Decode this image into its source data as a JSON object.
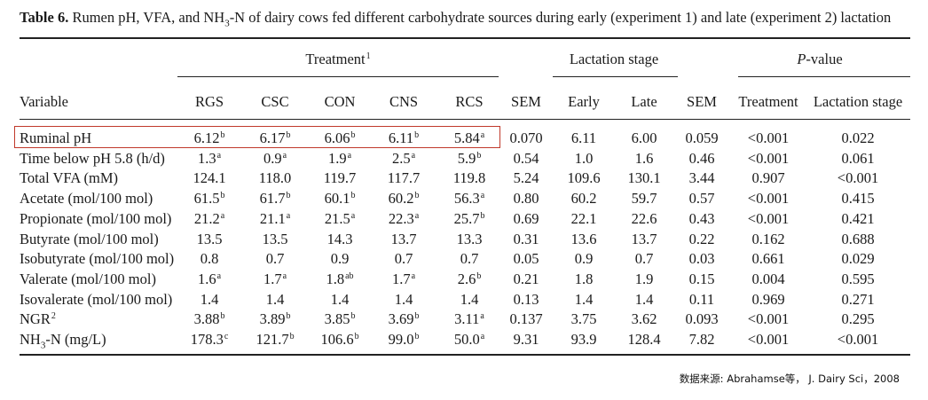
{
  "table": {
    "caption_label": "Table 6.",
    "caption_pre": " Rumen pH, VFA, and NH",
    "caption_sub": "3",
    "caption_post": "-N of dairy cows fed different carbohydrate sources during early (experiment 1) and late (experiment 2) lactation",
    "groups": {
      "treatment": "Treatment",
      "treatment_sup": "1",
      "lactation": "Lactation stage",
      "pvalue_italic": "P",
      "pvalue_rest": "-value"
    },
    "headers": [
      "Variable",
      "RGS",
      "CSC",
      "CON",
      "CNS",
      "RCS",
      "SEM",
      "Early",
      "Late",
      "SEM",
      "Treatment",
      "Lactation stage"
    ],
    "rows": [
      {
        "label": "Ruminal pH",
        "cells": [
          [
            "6.12",
            "b"
          ],
          [
            "6.17",
            "b"
          ],
          [
            "6.06",
            "b"
          ],
          [
            "6.11",
            "b"
          ],
          [
            "5.84",
            "a"
          ],
          [
            "0.070",
            ""
          ],
          [
            "6.11",
            ""
          ],
          [
            "6.00",
            ""
          ],
          [
            "0.059",
            ""
          ],
          [
            "<0.001",
            ""
          ],
          [
            "0.022",
            ""
          ]
        ]
      },
      {
        "label": "Time below pH 5.8 (h/d)",
        "cells": [
          [
            "1.3",
            "a"
          ],
          [
            "0.9",
            "a"
          ],
          [
            "1.9",
            "a"
          ],
          [
            "2.5",
            "a"
          ],
          [
            "5.9",
            "b"
          ],
          [
            "0.54",
            ""
          ],
          [
            "1.0",
            ""
          ],
          [
            "1.6",
            ""
          ],
          [
            "0.46",
            ""
          ],
          [
            "<0.001",
            ""
          ],
          [
            "0.061",
            ""
          ]
        ]
      },
      {
        "label": "Total VFA (mM)",
        "cells": [
          [
            "124.1",
            ""
          ],
          [
            "118.0",
            ""
          ],
          [
            "119.7",
            ""
          ],
          [
            "117.7",
            ""
          ],
          [
            "119.8",
            ""
          ],
          [
            "5.24",
            ""
          ],
          [
            "109.6",
            ""
          ],
          [
            "130.1",
            ""
          ],
          [
            "3.44",
            ""
          ],
          [
            "0.907",
            ""
          ],
          [
            "<0.001",
            ""
          ]
        ]
      },
      {
        "label": "Acetate (mol/100 mol)",
        "cells": [
          [
            "61.5",
            "b"
          ],
          [
            "61.7",
            "b"
          ],
          [
            "60.1",
            "b"
          ],
          [
            "60.2",
            "b"
          ],
          [
            "56.3",
            "a"
          ],
          [
            "0.80",
            ""
          ],
          [
            "60.2",
            ""
          ],
          [
            "59.7",
            ""
          ],
          [
            "0.57",
            ""
          ],
          [
            "<0.001",
            ""
          ],
          [
            "0.415",
            ""
          ]
        ]
      },
      {
        "label": "Propionate (mol/100 mol)",
        "cells": [
          [
            "21.2",
            "a"
          ],
          [
            "21.1",
            "a"
          ],
          [
            "21.5",
            "a"
          ],
          [
            "22.3",
            "a"
          ],
          [
            "25.7",
            "b"
          ],
          [
            "0.69",
            ""
          ],
          [
            "22.1",
            ""
          ],
          [
            "22.6",
            ""
          ],
          [
            "0.43",
            ""
          ],
          [
            "<0.001",
            ""
          ],
          [
            "0.421",
            ""
          ]
        ]
      },
      {
        "label": "Butyrate (mol/100 mol)",
        "cells": [
          [
            "13.5",
            ""
          ],
          [
            "13.5",
            ""
          ],
          [
            "14.3",
            ""
          ],
          [
            "13.7",
            ""
          ],
          [
            "13.3",
            ""
          ],
          [
            "0.31",
            ""
          ],
          [
            "13.6",
            ""
          ],
          [
            "13.7",
            ""
          ],
          [
            "0.22",
            ""
          ],
          [
            "0.162",
            ""
          ],
          [
            "0.688",
            ""
          ]
        ]
      },
      {
        "label": "Isobutyrate (mol/100 mol)",
        "cells": [
          [
            "0.8",
            ""
          ],
          [
            "0.7",
            ""
          ],
          [
            "0.9",
            ""
          ],
          [
            "0.7",
            ""
          ],
          [
            "0.7",
            ""
          ],
          [
            "0.05",
            ""
          ],
          [
            "0.9",
            ""
          ],
          [
            "0.7",
            ""
          ],
          [
            "0.03",
            ""
          ],
          [
            "0.661",
            ""
          ],
          [
            "0.029",
            ""
          ]
        ]
      },
      {
        "label": "Valerate (mol/100 mol)",
        "cells": [
          [
            "1.6",
            "a"
          ],
          [
            "1.7",
            "a"
          ],
          [
            "1.8",
            "ab"
          ],
          [
            "1.7",
            "a"
          ],
          [
            "2.6",
            "b"
          ],
          [
            "0.21",
            ""
          ],
          [
            "1.8",
            ""
          ],
          [
            "1.9",
            ""
          ],
          [
            "0.15",
            ""
          ],
          [
            "0.004",
            ""
          ],
          [
            "0.595",
            ""
          ]
        ]
      },
      {
        "label": "Isovalerate (mol/100 mol)",
        "cells": [
          [
            "1.4",
            ""
          ],
          [
            "1.4",
            ""
          ],
          [
            "1.4",
            ""
          ],
          [
            "1.4",
            ""
          ],
          [
            "1.4",
            ""
          ],
          [
            "0.13",
            ""
          ],
          [
            "1.4",
            ""
          ],
          [
            "1.4",
            ""
          ],
          [
            "0.11",
            ""
          ],
          [
            "0.969",
            ""
          ],
          [
            "0.271",
            ""
          ]
        ]
      },
      {
        "label": "NGR",
        "label_sup": "2",
        "cells": [
          [
            "3.88",
            "b"
          ],
          [
            "3.89",
            "b"
          ],
          [
            "3.85",
            "b"
          ],
          [
            "3.69",
            "b"
          ],
          [
            "3.11",
            "a"
          ],
          [
            "0.137",
            ""
          ],
          [
            "3.75",
            ""
          ],
          [
            "3.62",
            ""
          ],
          [
            "0.093",
            ""
          ],
          [
            "<0.001",
            ""
          ],
          [
            "0.295",
            ""
          ]
        ]
      },
      {
        "label": "NH",
        "label_sub": "3",
        "label_post": "-N (mg/L)",
        "cells": [
          [
            "178.3",
            "c"
          ],
          [
            "121.7",
            "b"
          ],
          [
            "106.6",
            "b"
          ],
          [
            "99.0",
            "b"
          ],
          [
            "50.0",
            "a"
          ],
          [
            "9.31",
            ""
          ],
          [
            "93.9",
            ""
          ],
          [
            "128.4",
            ""
          ],
          [
            "7.82",
            ""
          ],
          [
            "<0.001",
            ""
          ],
          [
            "<0.001",
            ""
          ]
        ]
      }
    ]
  },
  "source_note": "数据来源: Abrahamse等， J. Dairy Sci，2008",
  "colors": {
    "highlight": "#c0392b",
    "rule": "#222222"
  }
}
